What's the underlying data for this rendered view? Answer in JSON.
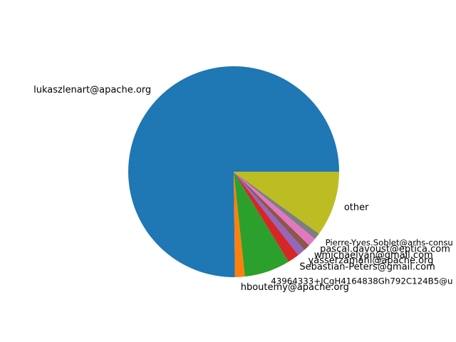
{
  "chart_data": {
    "type": "pie",
    "series": [
      {
        "slices": [
          {
            "label": "lukaszlenart@apache.org",
            "value": 75.2,
            "color": "#1f77b4"
          },
          {
            "label": "hboutemy@apache.org",
            "value": 1.5,
            "color": "#ff7f0e"
          },
          {
            "label": "43964333+JCgH4164838Gh792C124B5@u",
            "value": 7.0,
            "color": "#2ca02c"
          },
          {
            "label": "Sebastian-Peters@gmail.com",
            "value": 1.8,
            "color": "#d62728"
          },
          {
            "label": "yasserzamani@apache.org",
            "value": 1.2,
            "color": "#9467bd"
          },
          {
            "label": "wmichaelyan@gmail.com",
            "value": 1.0,
            "color": "#8c564b"
          },
          {
            "label": "pascal.davoust@eptica.com",
            "value": 1.3,
            "color": "#e377c2"
          },
          {
            "label": "Pierre-Yves.Soblet@arhs-consu",
            "value": 1.0,
            "color": "#7f7f7f"
          },
          {
            "label": "other",
            "value": 10.0,
            "color": "#bcbd22"
          }
        ]
      }
    ],
    "start_angle_deg": 0,
    "direction": "counterclockwise",
    "title": "",
    "legend": "none"
  }
}
